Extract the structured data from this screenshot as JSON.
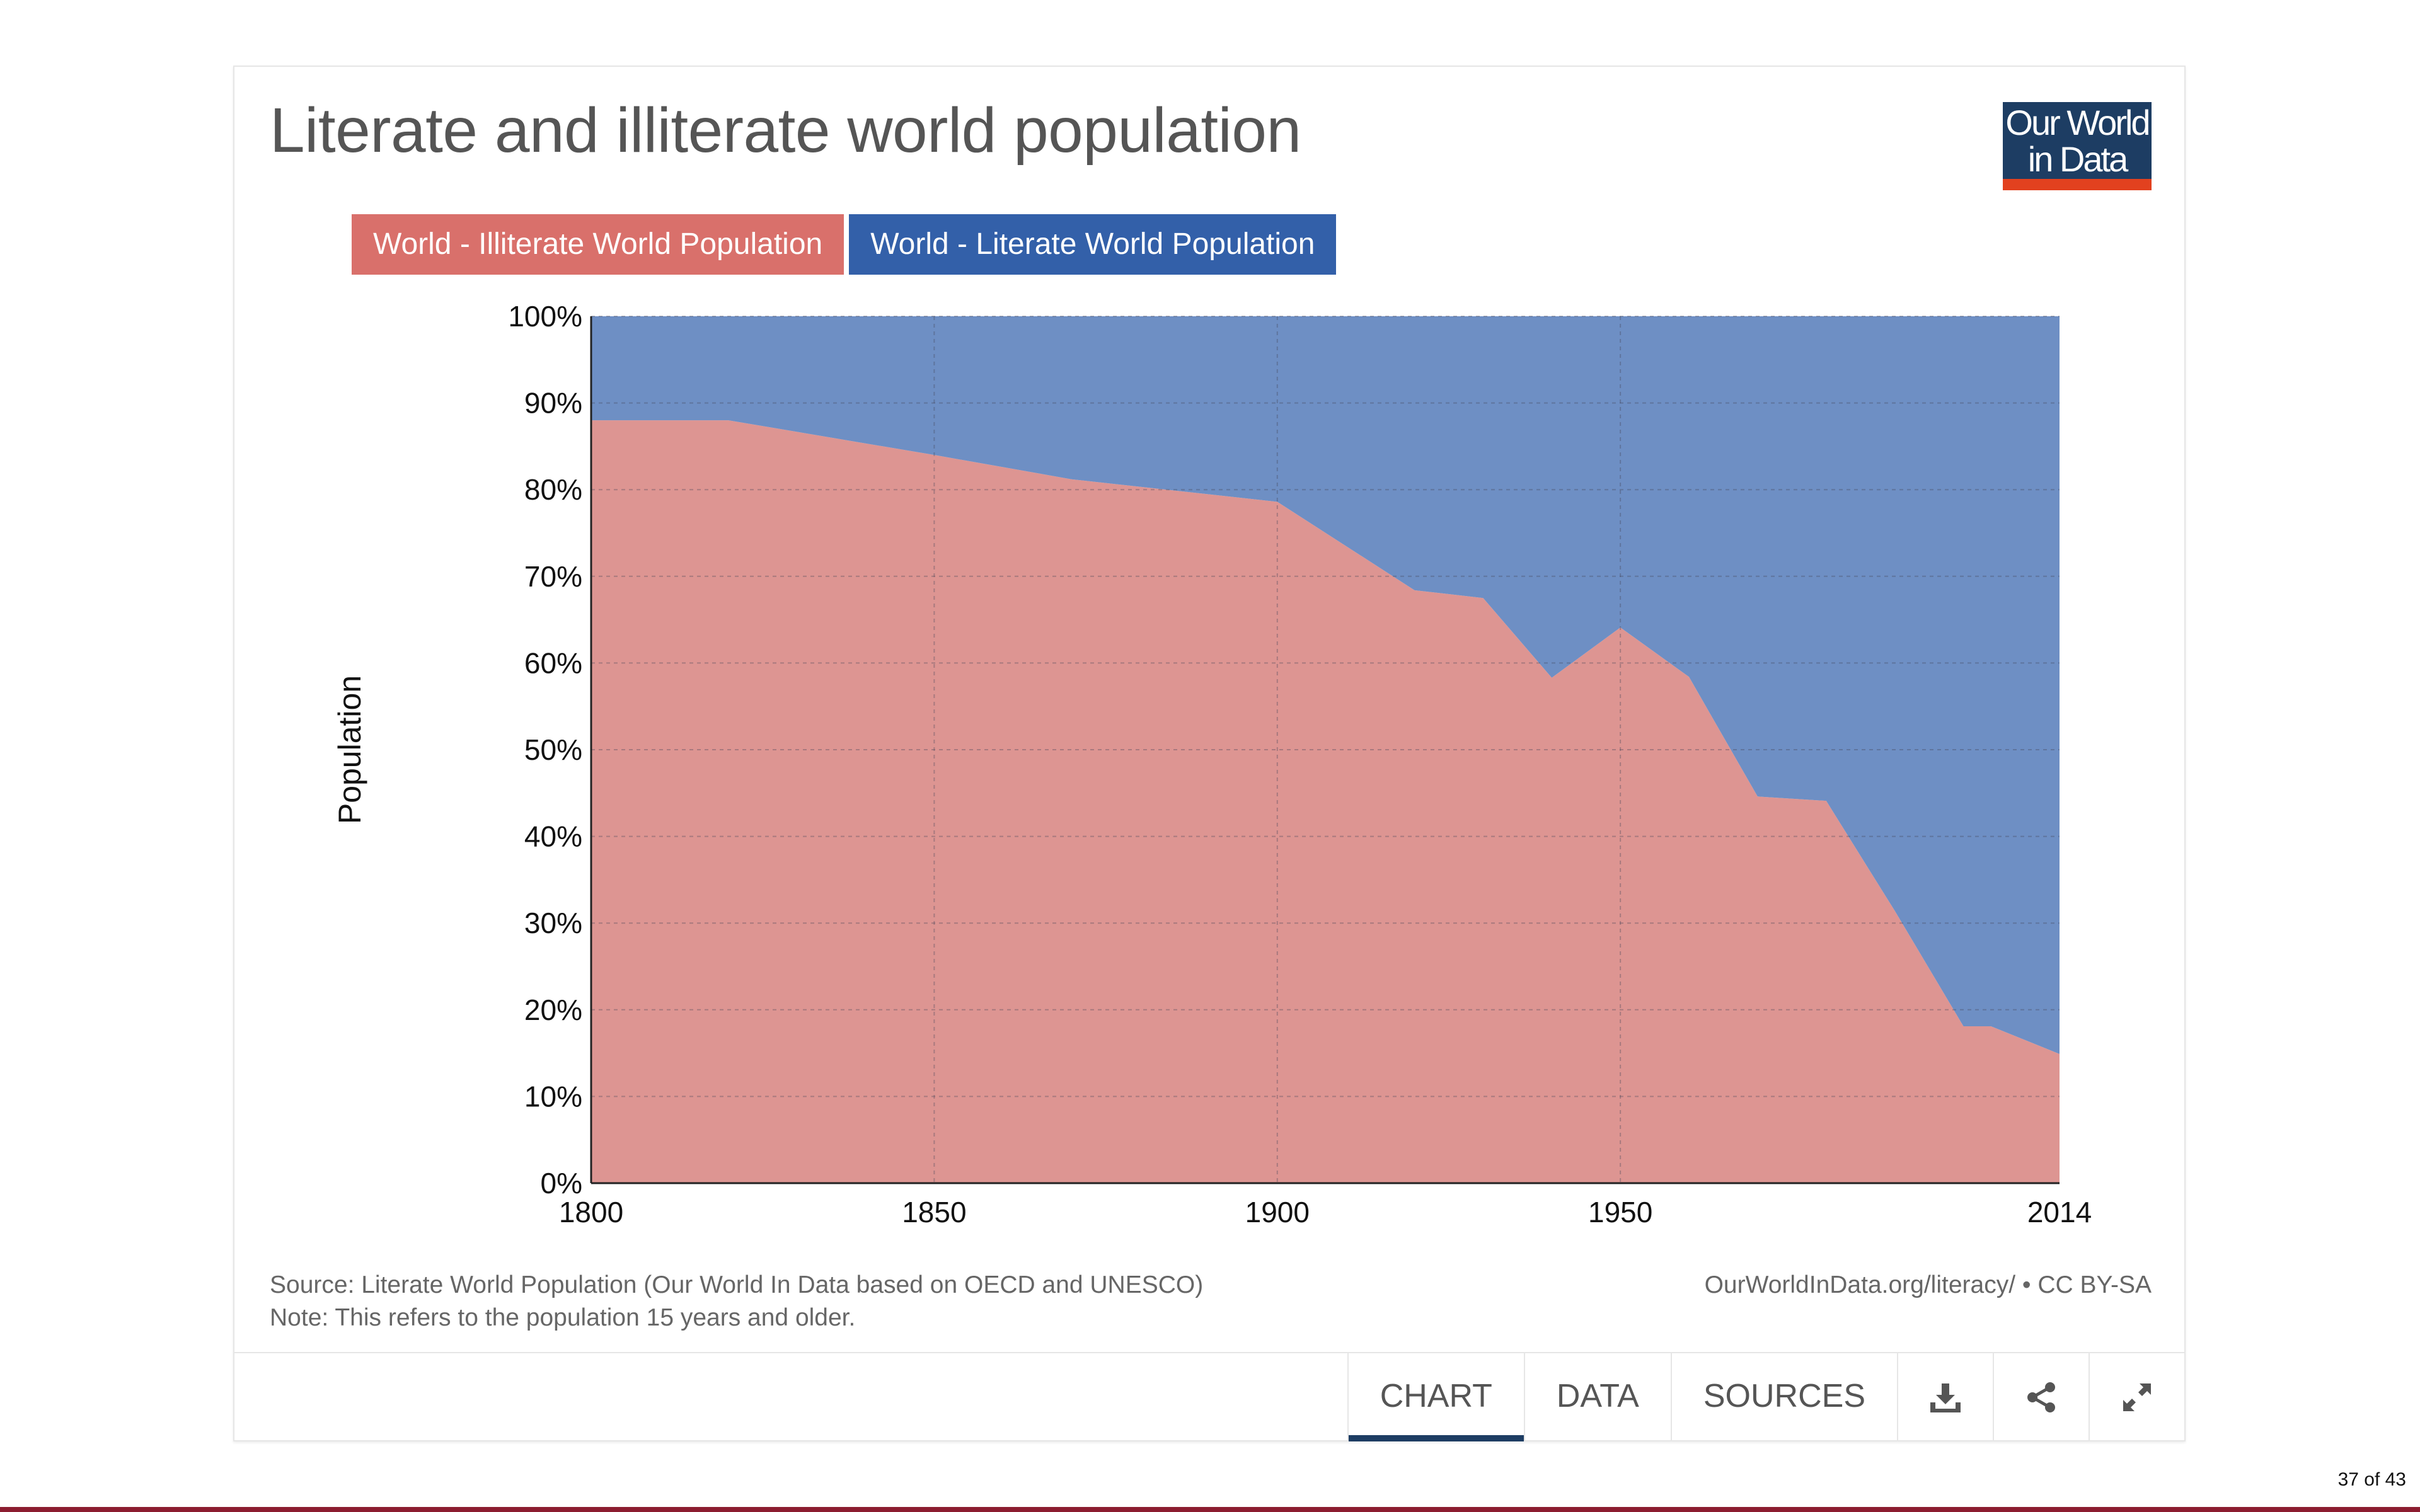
{
  "title": "Literate and illiterate world population",
  "logo": {
    "line1": "Our World",
    "line2": "in Data"
  },
  "legend": [
    {
      "label": "World - Illiterate World Population",
      "color": "#d9706b"
    },
    {
      "label": "World - Literate World Population",
      "color": "#3360a9"
    }
  ],
  "footer": {
    "source": "Source: Literate World Population (Our World In Data based on OECD and UNESCO)",
    "note": "Note: This refers to the population 15 years and older.",
    "url": "OurWorldInData.org/literacy/ • CC BY-SA"
  },
  "tabs": [
    {
      "label": "CHART",
      "active": true
    },
    {
      "label": "DATA",
      "active": false
    },
    {
      "label": "SOURCES",
      "active": false
    }
  ],
  "icons": [
    "download-icon",
    "share-icon",
    "fullscreen-icon"
  ],
  "page_number": "37 of 43",
  "chart_data": {
    "type": "area",
    "stacked": true,
    "ylabel": "Population",
    "xlabel": "",
    "xlim": [
      1800,
      2014
    ],
    "ylim": [
      0,
      100
    ],
    "x_ticks": [
      "1800",
      "1850",
      "1900",
      "1950",
      "2014"
    ],
    "y_ticks": [
      "0%",
      "10%",
      "20%",
      "30%",
      "40%",
      "50%",
      "60%",
      "70%",
      "80%",
      "90%",
      "100%"
    ],
    "grid": true,
    "x": [
      1800,
      1820,
      1850,
      1870,
      1900,
      1920,
      1930,
      1940,
      1950,
      1960,
      1970,
      1980,
      1990,
      2000,
      2004,
      2014
    ],
    "series": [
      {
        "name": "World - Illiterate World Population",
        "color": "#dd9592",
        "values": [
          88,
          88,
          84,
          81.2,
          78.6,
          68.4,
          67.5,
          58.3,
          64.1,
          58.4,
          44.6,
          44.1,
          31.4,
          18.1,
          18.1,
          14.9
        ]
      },
      {
        "name": "World - Literate World Population",
        "color": "#6e8fc4",
        "values": [
          12,
          12,
          16,
          18.8,
          21.4,
          31.6,
          32.5,
          41.7,
          35.9,
          41.6,
          55.4,
          55.9,
          68.6,
          81.9,
          81.9,
          85.1
        ]
      }
    ]
  }
}
